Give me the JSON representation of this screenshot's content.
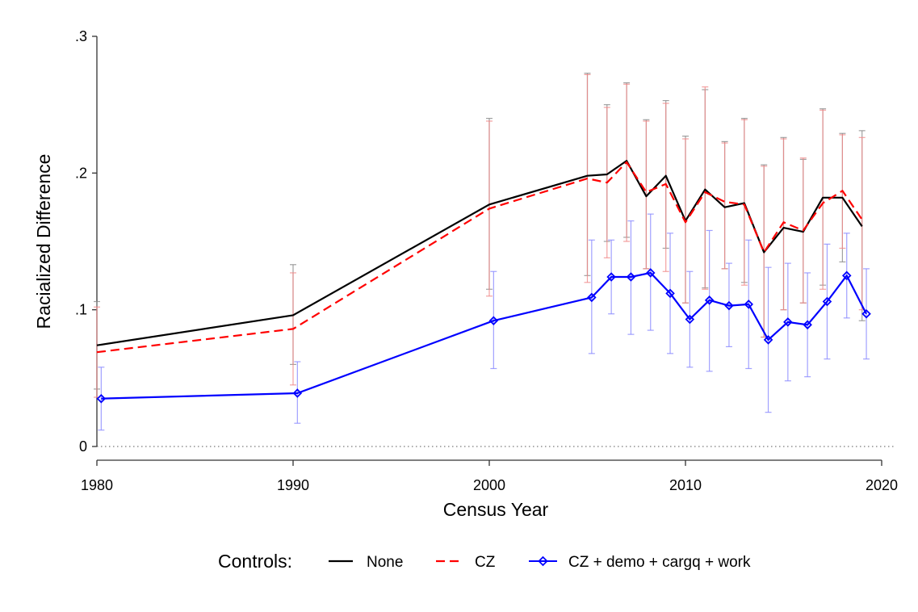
{
  "chart_data": {
    "type": "line",
    "xlabel": "Census Year",
    "ylabel": "Racialized Difference",
    "xlim": [
      1980,
      2020
    ],
    "ylim": [
      0,
      0.3
    ],
    "xticks": [
      1980,
      1990,
      2000,
      2010,
      2020
    ],
    "xtick_labels": [
      "1980",
      "1990",
      "2000",
      "2010",
      "2020"
    ],
    "yticks": [
      0,
      0.1,
      0.2,
      0.3
    ],
    "ytick_labels": [
      "0",
      ".1",
      ".2",
      ".3"
    ],
    "reference_line": 0,
    "legend": {
      "title": "Controls:",
      "placement": "bottom"
    },
    "series": [
      {
        "name": "None",
        "color": "#000000",
        "style": "solid",
        "marker": "none",
        "x": [
          1980,
          1990,
          2000,
          2005,
          2006,
          2007,
          2008,
          2009,
          2010,
          2011,
          2012,
          2013,
          2014,
          2015,
          2016,
          2017,
          2018,
          2019
        ],
        "y": [
          0.074,
          0.096,
          0.177,
          0.198,
          0.199,
          0.209,
          0.183,
          0.198,
          0.165,
          0.188,
          0.175,
          0.178,
          0.142,
          0.16,
          0.157,
          0.182,
          0.182,
          0.161
        ],
        "lower": [
          0.042,
          0.06,
          0.115,
          0.125,
          0.15,
          0.153,
          0.13,
          0.145,
          0.105,
          0.116,
          0.13,
          0.12,
          0.08,
          0.1,
          0.105,
          0.118,
          0.135,
          0.092
        ],
        "upper": [
          0.106,
          0.133,
          0.24,
          0.273,
          0.25,
          0.266,
          0.239,
          0.253,
          0.227,
          0.261,
          0.223,
          0.24,
          0.206,
          0.226,
          0.21,
          0.247,
          0.229,
          0.231
        ]
      },
      {
        "name": "CZ",
        "color": "#ff0000",
        "style": "dashed",
        "marker": "none",
        "x": [
          1980,
          1990,
          2000,
          2005,
          2006,
          2007,
          2008,
          2009,
          2010,
          2011,
          2012,
          2013,
          2014,
          2015,
          2016,
          2017,
          2018,
          2019
        ],
        "y": [
          0.069,
          0.086,
          0.174,
          0.196,
          0.193,
          0.208,
          0.186,
          0.192,
          0.164,
          0.186,
          0.179,
          0.177,
          0.142,
          0.164,
          0.158,
          0.178,
          0.187,
          0.166
        ],
        "lower": [
          0.036,
          0.045,
          0.11,
          0.12,
          0.138,
          0.15,
          0.13,
          0.128,
          0.105,
          0.115,
          0.13,
          0.118,
          0.08,
          0.1,
          0.105,
          0.115,
          0.145,
          0.1
        ],
        "upper": [
          0.102,
          0.127,
          0.238,
          0.272,
          0.248,
          0.265,
          0.238,
          0.251,
          0.225,
          0.263,
          0.222,
          0.239,
          0.205,
          0.225,
          0.211,
          0.246,
          0.228,
          0.226
        ]
      },
      {
        "name": "CZ + demo + cargq + work",
        "color": "#0000ff",
        "style": "solid",
        "marker": "diamond",
        "x": [
          1980,
          1990,
          2000,
          2005,
          2006,
          2007,
          2008,
          2009,
          2010,
          2011,
          2012,
          2013,
          2014,
          2015,
          2016,
          2017,
          2018,
          2019
        ],
        "y": [
          0.035,
          0.039,
          0.092,
          0.109,
          0.124,
          0.124,
          0.127,
          0.112,
          0.093,
          0.107,
          0.103,
          0.104,
          0.078,
          0.091,
          0.089,
          0.106,
          0.125,
          0.097
        ],
        "lower": [
          0.012,
          0.017,
          0.057,
          0.068,
          0.097,
          0.082,
          0.085,
          0.068,
          0.058,
          0.055,
          0.073,
          0.057,
          0.025,
          0.048,
          0.051,
          0.064,
          0.094,
          0.064
        ],
        "upper": [
          0.058,
          0.062,
          0.128,
          0.151,
          0.151,
          0.165,
          0.17,
          0.156,
          0.128,
          0.158,
          0.134,
          0.151,
          0.131,
          0.134,
          0.127,
          0.148,
          0.156,
          0.13
        ]
      }
    ]
  }
}
